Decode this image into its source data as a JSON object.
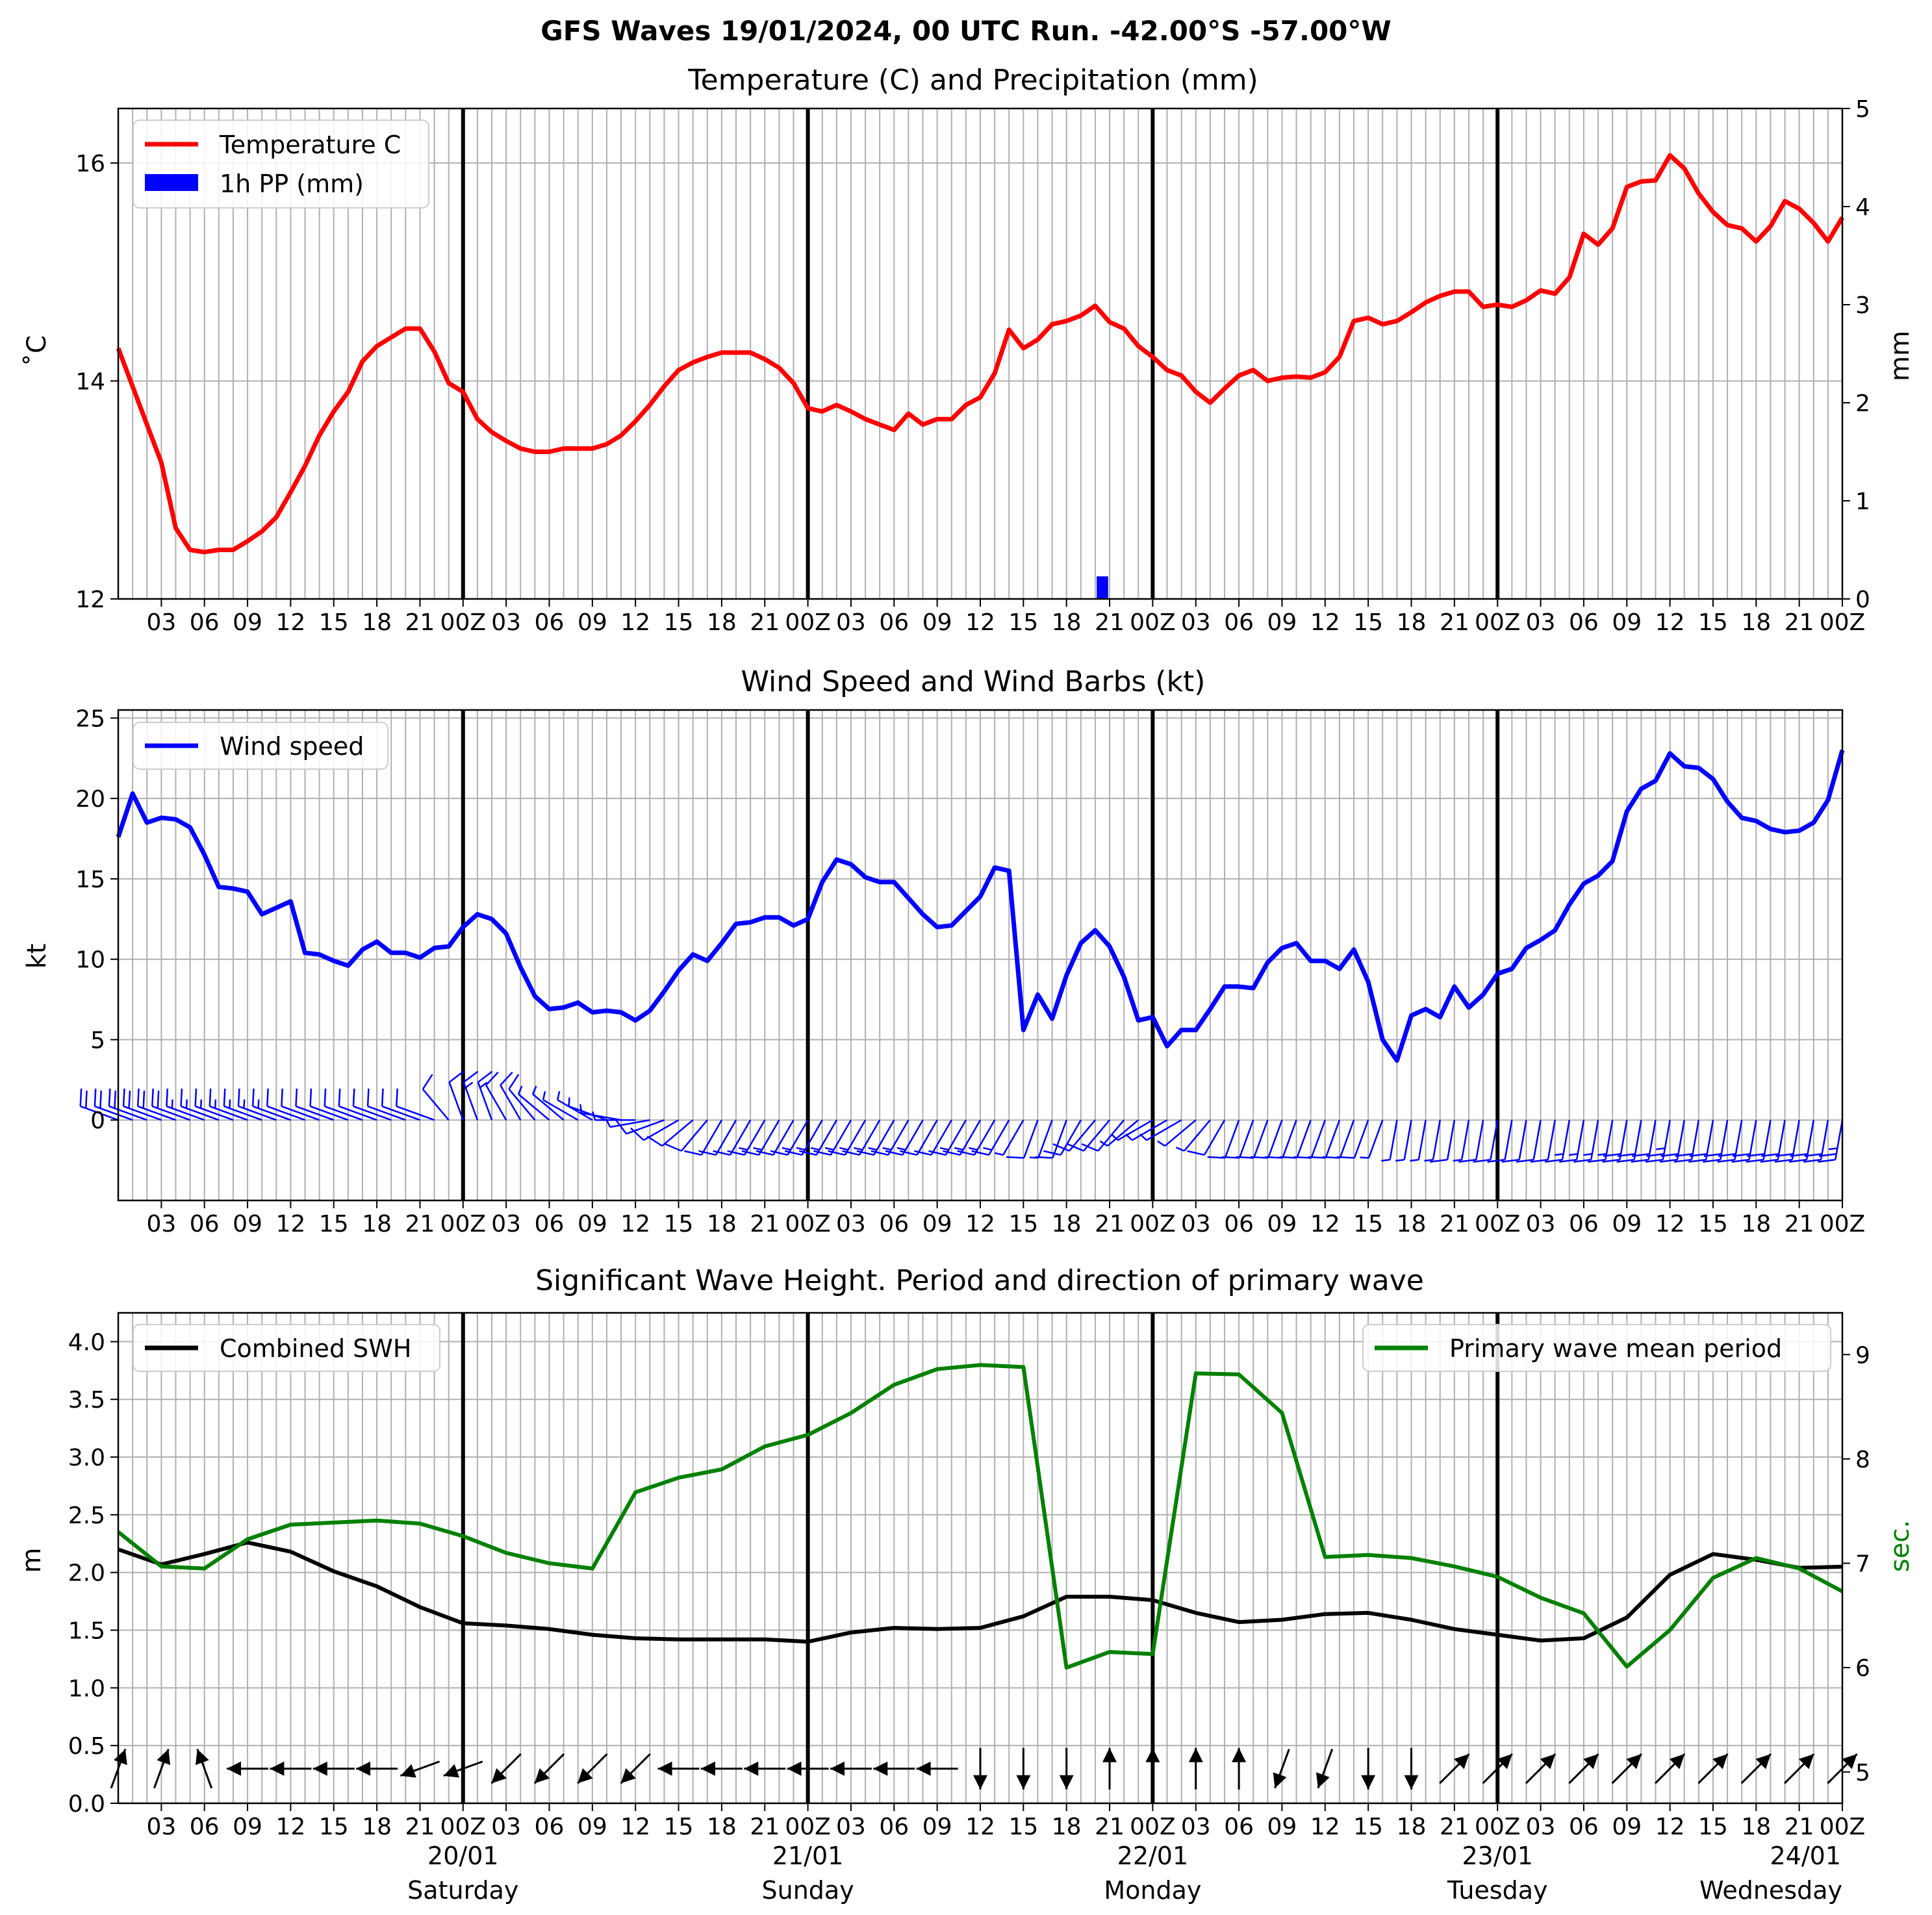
{
  "figure_title": "GFS Waves 19/01/2024, 00 UTC Run. -42.00°S -57.00°W",
  "x_tick_labels": [
    "03",
    "06",
    "09",
    "12",
    "15",
    "18",
    "21",
    "00Z",
    "03",
    "06",
    "09",
    "12",
    "15",
    "18",
    "21",
    "00Z",
    "03",
    "06",
    "09",
    "12",
    "15",
    "18",
    "21",
    "00Z",
    "03",
    "06",
    "09",
    "12",
    "15",
    "18",
    "21",
    "00Z",
    "03",
    "06",
    "09",
    "12",
    "15",
    "18",
    "21",
    "00Z"
  ],
  "day_labels": [
    {
      "date": "20/01",
      "day": "Saturday",
      "hour": 24
    },
    {
      "date": "21/01",
      "day": "Sunday",
      "hour": 48
    },
    {
      "date": "22/01",
      "day": "Monday",
      "hour": 72
    },
    {
      "date": "23/01",
      "day": "Tuesday",
      "hour": 96
    },
    {
      "date": "24/01",
      "day": "Wednesday",
      "hour": 120
    }
  ],
  "colors": {
    "temperature": "#ff0000",
    "precip": "#0000ff",
    "wind": "#0000ff",
    "swh": "#000000",
    "period": "#008000",
    "grid": "#b0b0b0"
  },
  "chart_data": [
    {
      "type": "line",
      "title": "Temperature (C) and Precipitation (mm)",
      "xlabel": "",
      "ylabel": "˚C",
      "ylabel_right": "mm",
      "xlim_hours": [
        0,
        120
      ],
      "ylim": [
        12,
        16.5
      ],
      "yticks": [
        12,
        14,
        16
      ],
      "ylim_right": [
        0,
        5
      ],
      "yticks_right": [
        0,
        1,
        2,
        3,
        4,
        5
      ],
      "grid": true,
      "legend": {
        "placement": "top-left",
        "entries": [
          "Temperature C",
          "1h PP (mm)"
        ]
      },
      "series": [
        {
          "name": "Temperature C",
          "x_hours": [
            0,
            1,
            2,
            3,
            4,
            5,
            6,
            7,
            8,
            9,
            10,
            11,
            12,
            13,
            14,
            15,
            16,
            17,
            18,
            19,
            20,
            21,
            22,
            23,
            24,
            25,
            26,
            27,
            28,
            29,
            30,
            31,
            32,
            33,
            34,
            35,
            36,
            37,
            38,
            39,
            40,
            41,
            42,
            43,
            44,
            45,
            46,
            47,
            48,
            49,
            50,
            51,
            52,
            53,
            54,
            55,
            56,
            57,
            58,
            59,
            60,
            61,
            62,
            63,
            64,
            65,
            66,
            67,
            68,
            69,
            70,
            71,
            72,
            73,
            74,
            75,
            76,
            77,
            78,
            79,
            80,
            81,
            82,
            83,
            84,
            85,
            86,
            87,
            88,
            89,
            90,
            91,
            92,
            93,
            94,
            95,
            96,
            97,
            98,
            99,
            100,
            101,
            102,
            103,
            104,
            105,
            106,
            107,
            108,
            109,
            110,
            111,
            112,
            113,
            114,
            115,
            116,
            117,
            118,
            119,
            120
          ],
          "values": [
            14.3,
            13.95,
            13.6,
            13.25,
            12.65,
            12.45,
            12.43,
            12.45,
            12.45,
            12.53,
            12.62,
            12.75,
            12.98,
            13.22,
            13.5,
            13.72,
            13.9,
            14.18,
            14.32,
            14.4,
            14.48,
            14.48,
            14.27,
            13.98,
            13.9,
            13.65,
            13.53,
            13.45,
            13.38,
            13.35,
            13.35,
            13.38,
            13.38,
            13.38,
            13.42,
            13.5,
            13.63,
            13.78,
            13.95,
            14.1,
            14.17,
            14.22,
            14.26,
            14.26,
            14.26,
            14.2,
            14.12,
            13.98,
            13.75,
            13.72,
            13.78,
            13.72,
            13.65,
            13.6,
            13.55,
            13.7,
            13.6,
            13.65,
            13.65,
            13.78,
            13.85,
            14.07,
            14.47,
            14.3,
            14.38,
            14.52,
            14.55,
            14.6,
            14.69,
            14.54,
            14.48,
            14.32,
            14.22,
            14.1,
            14.05,
            13.9,
            13.8,
            13.93,
            14.05,
            14.1,
            14.0,
            14.03,
            14.04,
            14.03,
            14.08,
            14.22,
            14.55,
            14.58,
            14.52,
            14.55,
            14.63,
            14.72,
            14.78,
            14.82,
            14.82,
            14.68,
            14.7,
            14.68,
            14.74,
            14.83,
            14.8,
            14.95,
            15.35,
            15.25,
            15.4,
            15.78,
            15.83,
            15.84,
            16.07,
            15.95,
            15.72,
            15.55,
            15.43,
            15.4,
            15.28,
            15.42,
            15.65,
            15.58,
            15.45,
            15.28,
            15.5
          ]
        }
      ],
      "precip_bars": [
        {
          "x_hours": 68.5,
          "value_mm": 0.23
        }
      ]
    },
    {
      "type": "line",
      "title": "Wind Speed and Wind Barbs (kt)",
      "xlabel": "",
      "ylabel": "kt",
      "xlim_hours": [
        0,
        120
      ],
      "ylim": [
        -5,
        25.5
      ],
      "yticks": [
        0,
        5,
        10,
        15,
        20,
        25
      ],
      "grid": true,
      "legend": {
        "placement": "top-left",
        "entries": [
          "Wind speed"
        ]
      },
      "series": [
        {
          "name": "Wind speed",
          "x_hours": [
            0,
            1,
            2,
            3,
            4,
            5,
            6,
            7,
            8,
            9,
            10,
            11,
            12,
            13,
            14,
            15,
            16,
            17,
            18,
            19,
            20,
            21,
            22,
            23,
            24,
            25,
            26,
            27,
            28,
            29,
            30,
            31,
            32,
            33,
            34,
            35,
            36,
            37,
            38,
            39,
            40,
            41,
            42,
            43,
            44,
            45,
            46,
            47,
            48,
            49,
            50,
            51,
            52,
            53,
            54,
            55,
            56,
            57,
            58,
            59,
            60,
            61,
            62,
            63,
            64,
            65,
            66,
            67,
            68,
            69,
            70,
            71,
            72,
            73,
            74,
            75,
            76,
            77,
            78,
            79,
            80,
            81,
            82,
            83,
            84,
            85,
            86,
            87,
            88,
            89,
            90,
            91,
            92,
            93,
            94,
            95,
            96,
            97,
            98,
            99,
            100,
            101,
            102,
            103,
            104,
            105,
            106,
            107,
            108,
            109,
            110,
            111,
            112,
            113,
            114,
            115,
            116,
            117,
            118,
            119,
            120
          ],
          "values": [
            17.6,
            20.3,
            18.5,
            18.8,
            18.7,
            18.2,
            16.5,
            14.5,
            14.4,
            14.2,
            12.8,
            13.2,
            13.6,
            10.4,
            10.3,
            9.9,
            9.6,
            10.6,
            11.1,
            10.4,
            10.4,
            10.1,
            10.7,
            10.8,
            12.0,
            12.8,
            12.5,
            11.6,
            9.5,
            7.7,
            6.9,
            7.0,
            7.3,
            6.7,
            6.8,
            6.7,
            6.2,
            6.8,
            8.0,
            9.3,
            10.3,
            9.9,
            11.0,
            12.2,
            12.3,
            12.6,
            12.6,
            12.1,
            12.5,
            14.8,
            16.2,
            15.9,
            15.1,
            14.8,
            14.8,
            13.8,
            12.8,
            12.0,
            12.1,
            13.0,
            13.9,
            15.7,
            15.5,
            5.6,
            7.8,
            6.3,
            9.0,
            11.0,
            11.8,
            10.8,
            8.9,
            6.2,
            6.4,
            4.6,
            5.6,
            5.6,
            6.9,
            8.3,
            8.3,
            8.2,
            9.8,
            10.7,
            11.0,
            9.9,
            9.9,
            9.4,
            10.6,
            8.6,
            5.0,
            3.7,
            6.5,
            6.9,
            6.4,
            8.3,
            7.0,
            7.8,
            9.1,
            9.4,
            10.7,
            11.2,
            11.8,
            13.4,
            14.7,
            15.2,
            16.1,
            19.2,
            20.6,
            21.1,
            22.8,
            22.0,
            21.9,
            21.2,
            19.8,
            18.8,
            18.6,
            18.1,
            17.9,
            18.0,
            18.5,
            19.9,
            23.0
          ]
        }
      ],
      "wind_barbs": {
        "x_hours": [
          0,
          1,
          2,
          3,
          4,
          5,
          6,
          7,
          8,
          9,
          10,
          11,
          12,
          13,
          14,
          15,
          16,
          17,
          18,
          19,
          20,
          21,
          22,
          23,
          24,
          25,
          26,
          27,
          28,
          29,
          30,
          31,
          32,
          33,
          34,
          35,
          36,
          37,
          38,
          39,
          40,
          41,
          42,
          43,
          44,
          45,
          46,
          47,
          48,
          49,
          50,
          51,
          52,
          53,
          54,
          55,
          56,
          57,
          58,
          59,
          60,
          61,
          62,
          63,
          64,
          65,
          66,
          67,
          68,
          69,
          70,
          71,
          72,
          73,
          74,
          75,
          76,
          77,
          78,
          79,
          80,
          81,
          82,
          83,
          84,
          85,
          86,
          87,
          88,
          89,
          90,
          91,
          92,
          93,
          94,
          95,
          96,
          97,
          98,
          99,
          100,
          101,
          102,
          103,
          104,
          105,
          106,
          107,
          108,
          109,
          110,
          111,
          112,
          113,
          114,
          115,
          116,
          117,
          118,
          119,
          120
        ],
        "direction_deg": [
          290,
          290,
          290,
          290,
          290,
          290,
          290,
          290,
          290,
          290,
          290,
          290,
          290,
          290,
          290,
          290,
          290,
          290,
          290,
          290,
          290,
          290,
          290,
          320,
          340,
          340,
          340,
          330,
          330,
          320,
          310,
          310,
          300,
          300,
          290,
          280,
          270,
          260,
          250,
          240,
          230,
          220,
          210,
          210,
          210,
          210,
          210,
          210,
          210,
          210,
          210,
          210,
          210,
          210,
          210,
          210,
          210,
          210,
          210,
          210,
          210,
          210,
          210,
          210,
          200,
          200,
          200,
          210,
          220,
          220,
          220,
          230,
          240,
          240,
          240,
          230,
          220,
          210,
          200,
          200,
          200,
          200,
          200,
          200,
          200,
          200,
          200,
          200,
          200,
          190,
          190,
          190,
          190,
          190,
          190,
          190,
          190,
          190,
          190,
          190,
          190,
          190,
          190,
          190,
          190,
          190,
          190,
          190,
          190,
          190,
          190,
          190,
          190,
          190,
          190,
          190,
          190,
          190,
          190,
          190,
          190
        ]
      }
    },
    {
      "type": "line",
      "title": "Significant Wave Height. Period and direction of primary wave",
      "xlabel": "",
      "ylabel": "m",
      "ylabel_right": "sec.",
      "xlim_hours": [
        0,
        120
      ],
      "ylim": [
        0,
        4.25
      ],
      "yticks": [
        0.0,
        0.5,
        1.0,
        1.5,
        2.0,
        2.5,
        3.0,
        3.5,
        4.0
      ],
      "ylim_right": [
        4.7,
        9.4
      ],
      "yticks_right": [
        5,
        6,
        7,
        8,
        9
      ],
      "grid": true,
      "legend": {
        "placement": "top-left",
        "entries": [
          "Combined SWH"
        ]
      },
      "legend_right": {
        "placement": "top-right",
        "entries": [
          "Primary wave mean period"
        ]
      },
      "series": [
        {
          "name": "Combined SWH",
          "x_hours": [
            0,
            3,
            6,
            9,
            12,
            15,
            18,
            21,
            24,
            27,
            30,
            33,
            36,
            39,
            42,
            45,
            48,
            51,
            54,
            57,
            60,
            63,
            66,
            69,
            72,
            75,
            78,
            81,
            84,
            87,
            90,
            93,
            96,
            99,
            102,
            105,
            108,
            111,
            114,
            117,
            120
          ],
          "values": [
            2.2,
            2.07,
            2.16,
            2.26,
            2.18,
            2.01,
            1.88,
            1.7,
            1.56,
            1.54,
            1.51,
            1.46,
            1.43,
            1.42,
            1.42,
            1.42,
            1.4,
            1.48,
            1.52,
            1.51,
            1.52,
            1.62,
            1.79,
            1.79,
            1.76,
            1.65,
            1.57,
            1.59,
            1.64,
            1.65,
            1.59,
            1.51,
            1.46,
            1.41,
            1.43,
            1.61,
            1.98,
            2.16,
            2.11,
            2.04,
            2.05
          ]
        },
        {
          "name": "Primary wave mean period",
          "x_hours": [
            0,
            3,
            6,
            9,
            12,
            15,
            18,
            21,
            24,
            27,
            30,
            33,
            36,
            39,
            42,
            45,
            48,
            51,
            54,
            57,
            60,
            63,
            66,
            69,
            72,
            75,
            78,
            81,
            84,
            87,
            90,
            93,
            96,
            99,
            102,
            105,
            108,
            111,
            114,
            117,
            120
          ],
          "values": [
            7.3,
            6.97,
            6.95,
            7.23,
            7.37,
            7.39,
            7.41,
            7.38,
            7.26,
            7.1,
            7.0,
            6.95,
            7.68,
            7.82,
            7.9,
            8.12,
            8.23,
            8.44,
            8.71,
            8.86,
            8.9,
            8.88,
            6.0,
            6.15,
            6.13,
            8.82,
            8.81,
            8.44,
            7.06,
            7.08,
            7.05,
            6.97,
            6.87,
            6.67,
            6.52,
            6.01,
            6.36,
            6.86,
            7.05,
            6.95,
            6.73
          ]
        }
      ],
      "wave_direction_deg": [
        20,
        20,
        340,
        270,
        270,
        270,
        270,
        250,
        250,
        225,
        225,
        225,
        225,
        270,
        270,
        270,
        270,
        270,
        270,
        270,
        180,
        180,
        180,
        0,
        0,
        0,
        0,
        200,
        200,
        180,
        180,
        45,
        45,
        45,
        45,
        45,
        45,
        45,
        45,
        45,
        45
      ]
    }
  ]
}
